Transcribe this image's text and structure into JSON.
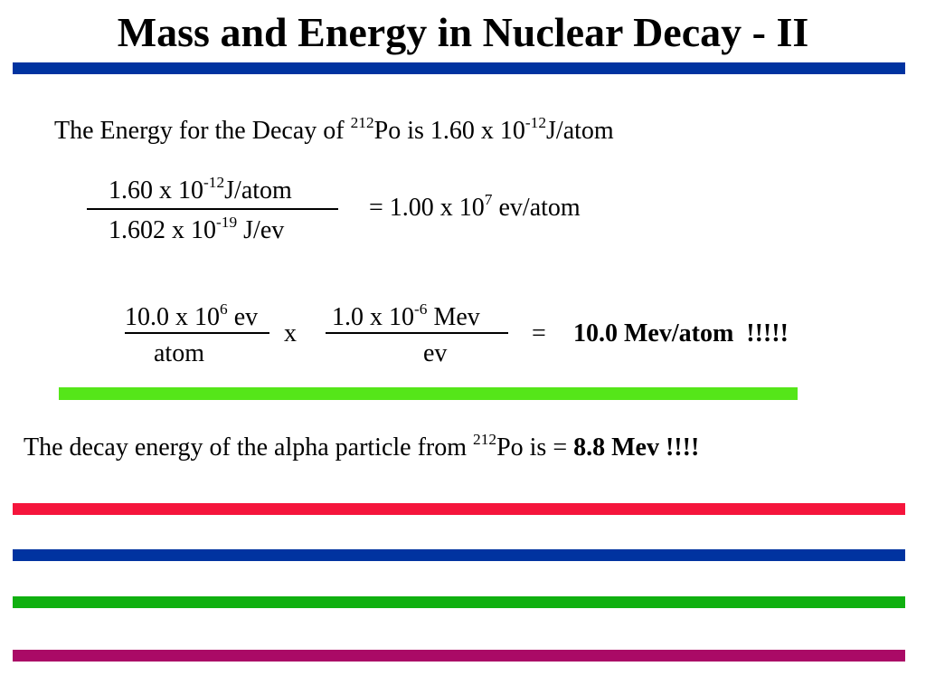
{
  "title": "Mass and Energy in Nuclear Decay - II",
  "line1": {
    "prefix": "The Energy for the Decay of ",
    "mass_number": "212",
    "element": "Po",
    "mid": " is 1.60 x 10",
    "exponent": "-12",
    "unit": "J/atom"
  },
  "conversion1": {
    "numerator": {
      "base": "1.60 x 10",
      "exponent": "-12",
      "unit": "J/atom"
    },
    "denominator": {
      "base": "1.602 x 10",
      "exponent": "-19",
      "unit": " J/ev"
    },
    "result": {
      "base": "= 1.00 x 10",
      "exponent": "7",
      "unit": " ev/atom"
    }
  },
  "conversion2": {
    "frac1_numerator": {
      "base": "10.0 x 10",
      "exponent": "6",
      "unit": " ev"
    },
    "frac1_denominator": "atom",
    "times": "x",
    "frac2_numerator": {
      "base": "1.0 x 10",
      "exponent": "-6",
      "unit": " Mev"
    },
    "frac2_denominator": "ev",
    "equals": "=",
    "result": "10.0 Mev/atom  !!!!!"
  },
  "line2": {
    "prefix": "The decay energy of the alpha particle from ",
    "mass_number": "212",
    "element": "Po",
    "mid": " is = ",
    "result": "8.8 Mev !!!!"
  },
  "colors": {
    "blue": "#0033a0",
    "green_light": "#55e619",
    "red": "#f5153c",
    "green": "#10b010",
    "magenta": "#aa0a66"
  }
}
